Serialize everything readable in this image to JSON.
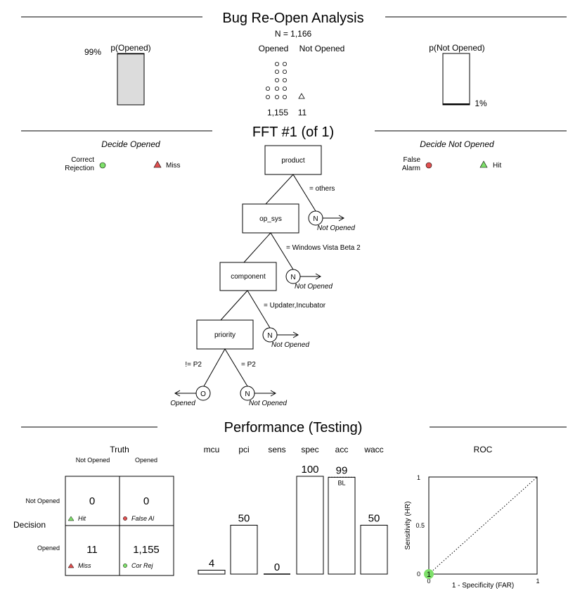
{
  "title": "Bug Re-Open Analysis",
  "n_label": "N = 1,166",
  "p_opened": {
    "label": "p(Opened)",
    "value_label": "99%",
    "value": 0.99
  },
  "p_not_opened": {
    "label": "p(Not Opened)",
    "value_label": "1%",
    "value": 0.01
  },
  "counts": {
    "opened_label": "Opened",
    "not_opened_label": "Not Opened",
    "opened_count": "1,155",
    "not_opened_count": "11"
  },
  "fft": {
    "title": "FFT #1 (of 1)",
    "decide_opened": "Decide Opened",
    "decide_not_opened": "Decide Not Opened",
    "legend": {
      "correct_rejection_line1": "Correct",
      "correct_rejection_line2": "Rejection",
      "miss": "Miss",
      "false_alarm_line1": "False",
      "false_alarm_line2": "Alarm",
      "hit": "Hit"
    },
    "nodes": {
      "product": "product",
      "op_sys": "op_sys",
      "component": "component",
      "priority": "priority"
    },
    "branches": {
      "product_exit": "= others",
      "op_sys_exit": "= Windows Vista Beta 2",
      "component_exit": "= Updater,Incubator",
      "priority_left": "!= P2",
      "priority_right": "= P2"
    },
    "leaf_n": "N",
    "leaf_o": "O",
    "not_opened_label": "Not Opened",
    "opened_label": "Opened"
  },
  "performance": {
    "title": "Performance (Testing)",
    "truth_label": "Truth",
    "decision_label": "Decision",
    "col_not_opened": "Not Opened",
    "col_opened": "Opened",
    "row_not_opened": "Not Opened",
    "row_opened": "Opened",
    "cells": {
      "hit": {
        "value": "0",
        "label": "Hit"
      },
      "false_alarm": {
        "value": "0",
        "label": "False Al"
      },
      "miss": {
        "value": "11",
        "label": "Miss"
      },
      "cor_rej": {
        "value": "1,155",
        "label": "Cor Rej"
      }
    },
    "bl_label": "BL",
    "roc": {
      "title": "ROC",
      "ylabel": "Sensitivity (HR)",
      "xlabel": "1 - Specificity (FAR)",
      "y_ticks": [
        "1",
        "0.5",
        "0"
      ],
      "x_ticks": [
        "0",
        "1"
      ],
      "point_label": "1",
      "point": {
        "far": 0,
        "hr": 0
      }
    }
  },
  "chart_data": {
    "type": "bar",
    "categories": [
      "mcu",
      "pci",
      "sens",
      "spec",
      "acc",
      "wacc"
    ],
    "values": [
      4,
      50,
      0,
      100,
      99,
      50
    ],
    "ylim": [
      0,
      100
    ]
  },
  "colors": {
    "green": "#7ee06a",
    "red": "#e05050",
    "bar_fill": "#dcdcdc"
  }
}
